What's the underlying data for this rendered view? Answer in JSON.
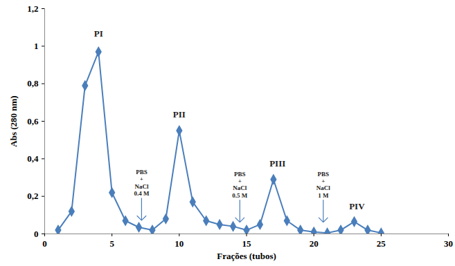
{
  "chart_data": {
    "type": "line",
    "xlabel": "Frações (tubos)",
    "ylabel": "Abs (280 nm)",
    "x": [
      1,
      2,
      3,
      4,
      5,
      6,
      7,
      8,
      9,
      10,
      11,
      12,
      13,
      14,
      15,
      16,
      17,
      18,
      19,
      20,
      21,
      22,
      23,
      24,
      25
    ],
    "values": [
      0.02,
      0.12,
      0.79,
      0.97,
      0.22,
      0.07,
      0.035,
      0.02,
      0.08,
      0.55,
      0.17,
      0.07,
      0.05,
      0.04,
      0.02,
      0.05,
      0.29,
      0.07,
      0.02,
      0.01,
      0.005,
      0.02,
      0.065,
      0.02,
      0.005
    ],
    "color": "#4a7ebb",
    "marker": "diamond",
    "xlim": [
      0,
      30
    ],
    "xticks": [
      0,
      5,
      10,
      15,
      20,
      25,
      30
    ],
    "ylim": [
      0,
      1.2
    ],
    "yticks": [
      0,
      {
        "value": 0.2,
        "label": "0,2"
      },
      {
        "value": 0.4,
        "label": "0,4"
      },
      {
        "value": 0.6,
        "label": "0,6"
      },
      {
        "value": 0.8,
        "label": "0,8"
      },
      1,
      {
        "value": 1.2,
        "label": "1,2"
      }
    ],
    "grid": false,
    "annotations": [
      {
        "text": "PI",
        "x": 4,
        "y": 1.05
      },
      {
        "text": "PII",
        "x": 10,
        "y": 0.62
      },
      {
        "text": "PIII",
        "x": 17.3,
        "y": 0.36
      },
      {
        "text": "PIV",
        "x": 23.2,
        "y": 0.13
      },
      {
        "text": "PBS\n+\nNaCl\n0.4 M",
        "x": 7.2,
        "y": 0.19,
        "arrow": true
      },
      {
        "text": "PBS\n+\nNaCl\n0.5 M",
        "x": 14.5,
        "y": 0.18,
        "arrow": true
      },
      {
        "text": "PBS\n+\nNaCl\n1 M",
        "x": 20.7,
        "y": 0.18,
        "arrow": true
      }
    ]
  }
}
